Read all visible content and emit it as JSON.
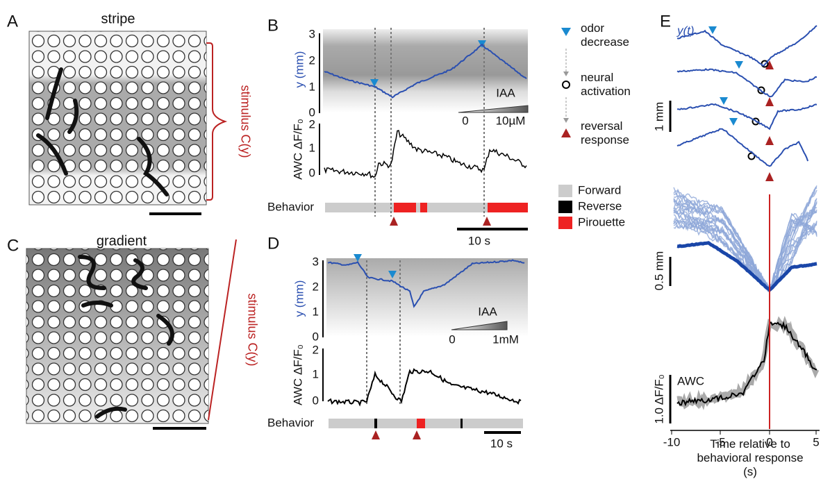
{
  "panels": {
    "a": {
      "letter": "A",
      "title": "stripe",
      "stimulus": "stimulus C(y)"
    },
    "c": {
      "letter": "C",
      "title": "gradient",
      "stimulus": "stimulus C(y)"
    },
    "b": {
      "letter": "B",
      "y_label": "y (mm)",
      "yticks": [
        "0",
        "1",
        "2",
        "3"
      ],
      "odor": "IAA",
      "odor_min": "0",
      "odor_max": "10µM",
      "awc_label": "AWC ΔF/F₀",
      "awc_ticks": [
        "0",
        "1",
        "2"
      ],
      "behavior": "Behavior",
      "scale": "10 s"
    },
    "d": {
      "letter": "D",
      "y_label": "y (mm)",
      "yticks": [
        "0",
        "1",
        "2",
        "3"
      ],
      "odor": "IAA",
      "odor_min": "0",
      "odor_max": "1mM",
      "awc_label": "AWC ΔF/F₀",
      "awc_ticks": [
        "0",
        "1",
        "2"
      ],
      "behavior": "Behavior",
      "scale": "10 s"
    },
    "e": {
      "letter": "E",
      "trace_label": "y(t)",
      "scale_top": "1 mm",
      "scale_mid": "0.5 mm",
      "scale_bottom": "1.0 ΔF/F₀",
      "awc": "AWC",
      "xticks": [
        "-10",
        "-5",
        "0",
        "5"
      ],
      "x_label": "Time relative to behavioral response (s)"
    }
  },
  "legend": {
    "odor_decrease": "odor decrease",
    "neural_activation": "neural activation",
    "reversal_response": "reversal response",
    "forward": "Forward",
    "reverse": "Reverse",
    "pirouette": "Pirouette"
  }
}
